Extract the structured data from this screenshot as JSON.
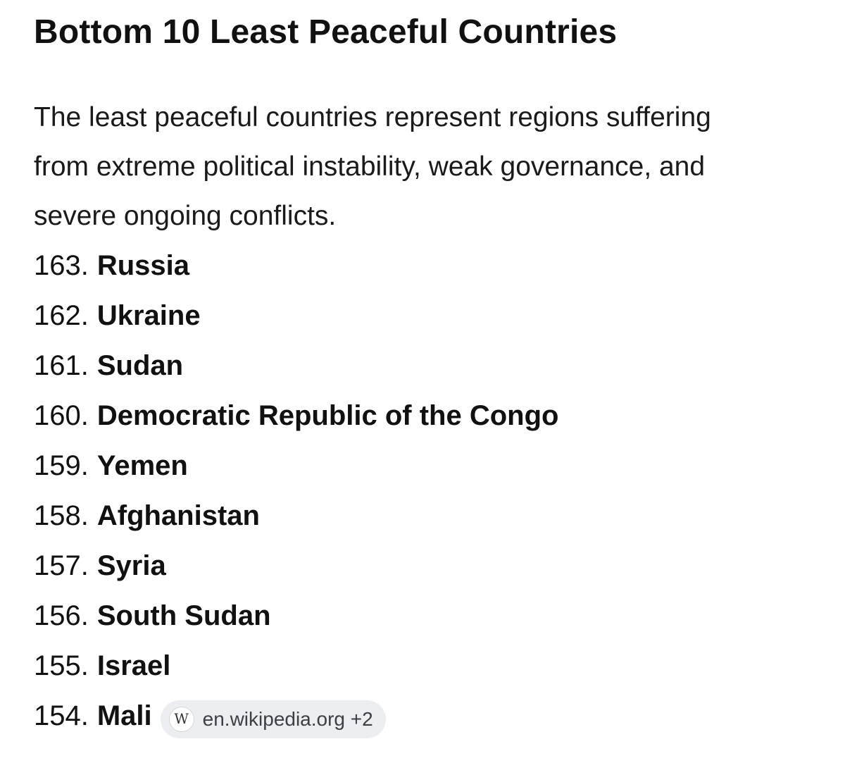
{
  "header": {
    "title": "Bottom 10 Least Peaceful Countries"
  },
  "intro": {
    "text": "The least peaceful countries represent regions suffering from extreme political instability, weak governance, and severe ongoing conflicts."
  },
  "rankings": [
    {
      "rank": "163.",
      "country": "Russia"
    },
    {
      "rank": "162.",
      "country": "Ukraine"
    },
    {
      "rank": "161.",
      "country": "Sudan"
    },
    {
      "rank": "160.",
      "country": "Democratic Republic of the Congo"
    },
    {
      "rank": "159.",
      "country": "Yemen"
    },
    {
      "rank": "158.",
      "country": "Afghanistan"
    },
    {
      "rank": "157.",
      "country": "Syria"
    },
    {
      "rank": "156.",
      "country": "South Sudan"
    },
    {
      "rank": "155.",
      "country": "Israel"
    },
    {
      "rank": "154.",
      "country": "Mali"
    }
  ],
  "source_chip": {
    "icon": "wikipedia-icon",
    "icon_glyph": "W",
    "label": "en.wikipedia.org +2"
  }
}
